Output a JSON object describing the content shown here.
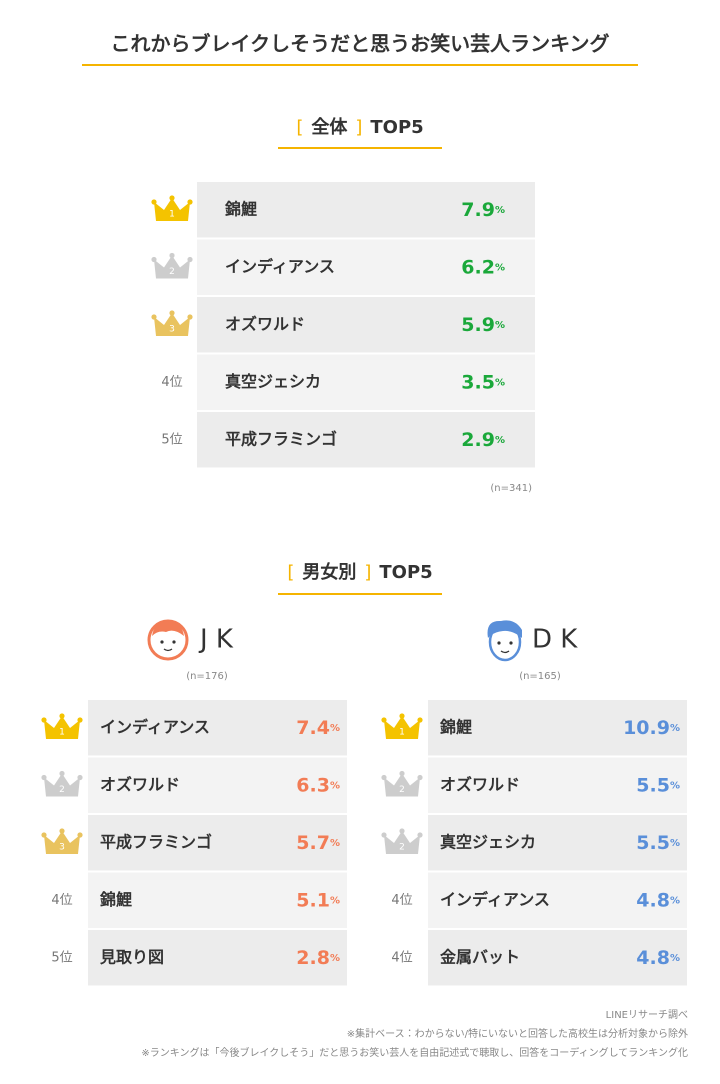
{
  "title": "これからブレイクしそうだと思うお笑い芸人ランキング",
  "overall": {
    "heading": {
      "open": "[",
      "label": "全体",
      "close": "]",
      "suffix": "TOP5"
    },
    "sample": "(n=341)",
    "color": "#1aa83a",
    "rows": [
      {
        "rank": "1",
        "crown": "gold",
        "name": "錦鯉",
        "value": "7.9",
        "unit": "%"
      },
      {
        "rank": "2",
        "crown": "silver",
        "name": "インディアンス",
        "value": "6.2",
        "unit": "%"
      },
      {
        "rank": "3",
        "crown": "bronze",
        "name": "オズワルド",
        "value": "5.9",
        "unit": "%"
      },
      {
        "rank": "4位",
        "name": "真空ジェシカ",
        "value": "3.5",
        "unit": "%"
      },
      {
        "rank": "5位",
        "name": "平成フラミンゴ",
        "value": "2.9",
        "unit": "%"
      }
    ]
  },
  "gender": {
    "heading": {
      "open": "[",
      "label": "男女別",
      "close": "]",
      "suffix": "TOP5"
    },
    "groups": [
      {
        "label": "J K",
        "sample": "(n=176)",
        "color": "#f27c55",
        "rows": [
          {
            "rank": "1",
            "crown": "gold",
            "name": "インディアンス",
            "value": "7.4",
            "unit": "%"
          },
          {
            "rank": "2",
            "crown": "silver",
            "name": "オズワルド",
            "value": "6.3",
            "unit": "%"
          },
          {
            "rank": "3",
            "crown": "bronze",
            "name": "平成フラミンゴ",
            "value": "5.7",
            "unit": "%"
          },
          {
            "rank": "4位",
            "name": "錦鯉",
            "value": "5.1",
            "unit": "%"
          },
          {
            "rank": "5位",
            "name": "見取り図",
            "value": "2.8",
            "unit": "%"
          }
        ]
      },
      {
        "label": "D K",
        "sample": "(n=165)",
        "color": "#5a8fd9",
        "rows": [
          {
            "rank": "1",
            "crown": "gold",
            "name": "錦鯉",
            "value": "10.9",
            "unit": "%"
          },
          {
            "rank": "2",
            "crown": "silver",
            "name": "オズワルド",
            "value": "5.5",
            "unit": "%"
          },
          {
            "rank": "2",
            "crown": "silver",
            "name": "真空ジェシカ",
            "value": "5.5",
            "unit": "%"
          },
          {
            "rank": "4位",
            "name": "インディアンス",
            "value": "4.8",
            "unit": "%"
          },
          {
            "rank": "4位",
            "name": "金属バット",
            "value": "4.8",
            "unit": "%"
          }
        ]
      }
    ]
  },
  "footnotes": [
    "LINEリサーチ調べ",
    "※集計ベース：わからない/特にいないと回答した高校生は分析対象から除外",
    "※ランキングは「今後ブレイクしそう」だと思うお笑い芸人を自由記述式で聴取し、回答をコーディングしてランキング化"
  ]
}
